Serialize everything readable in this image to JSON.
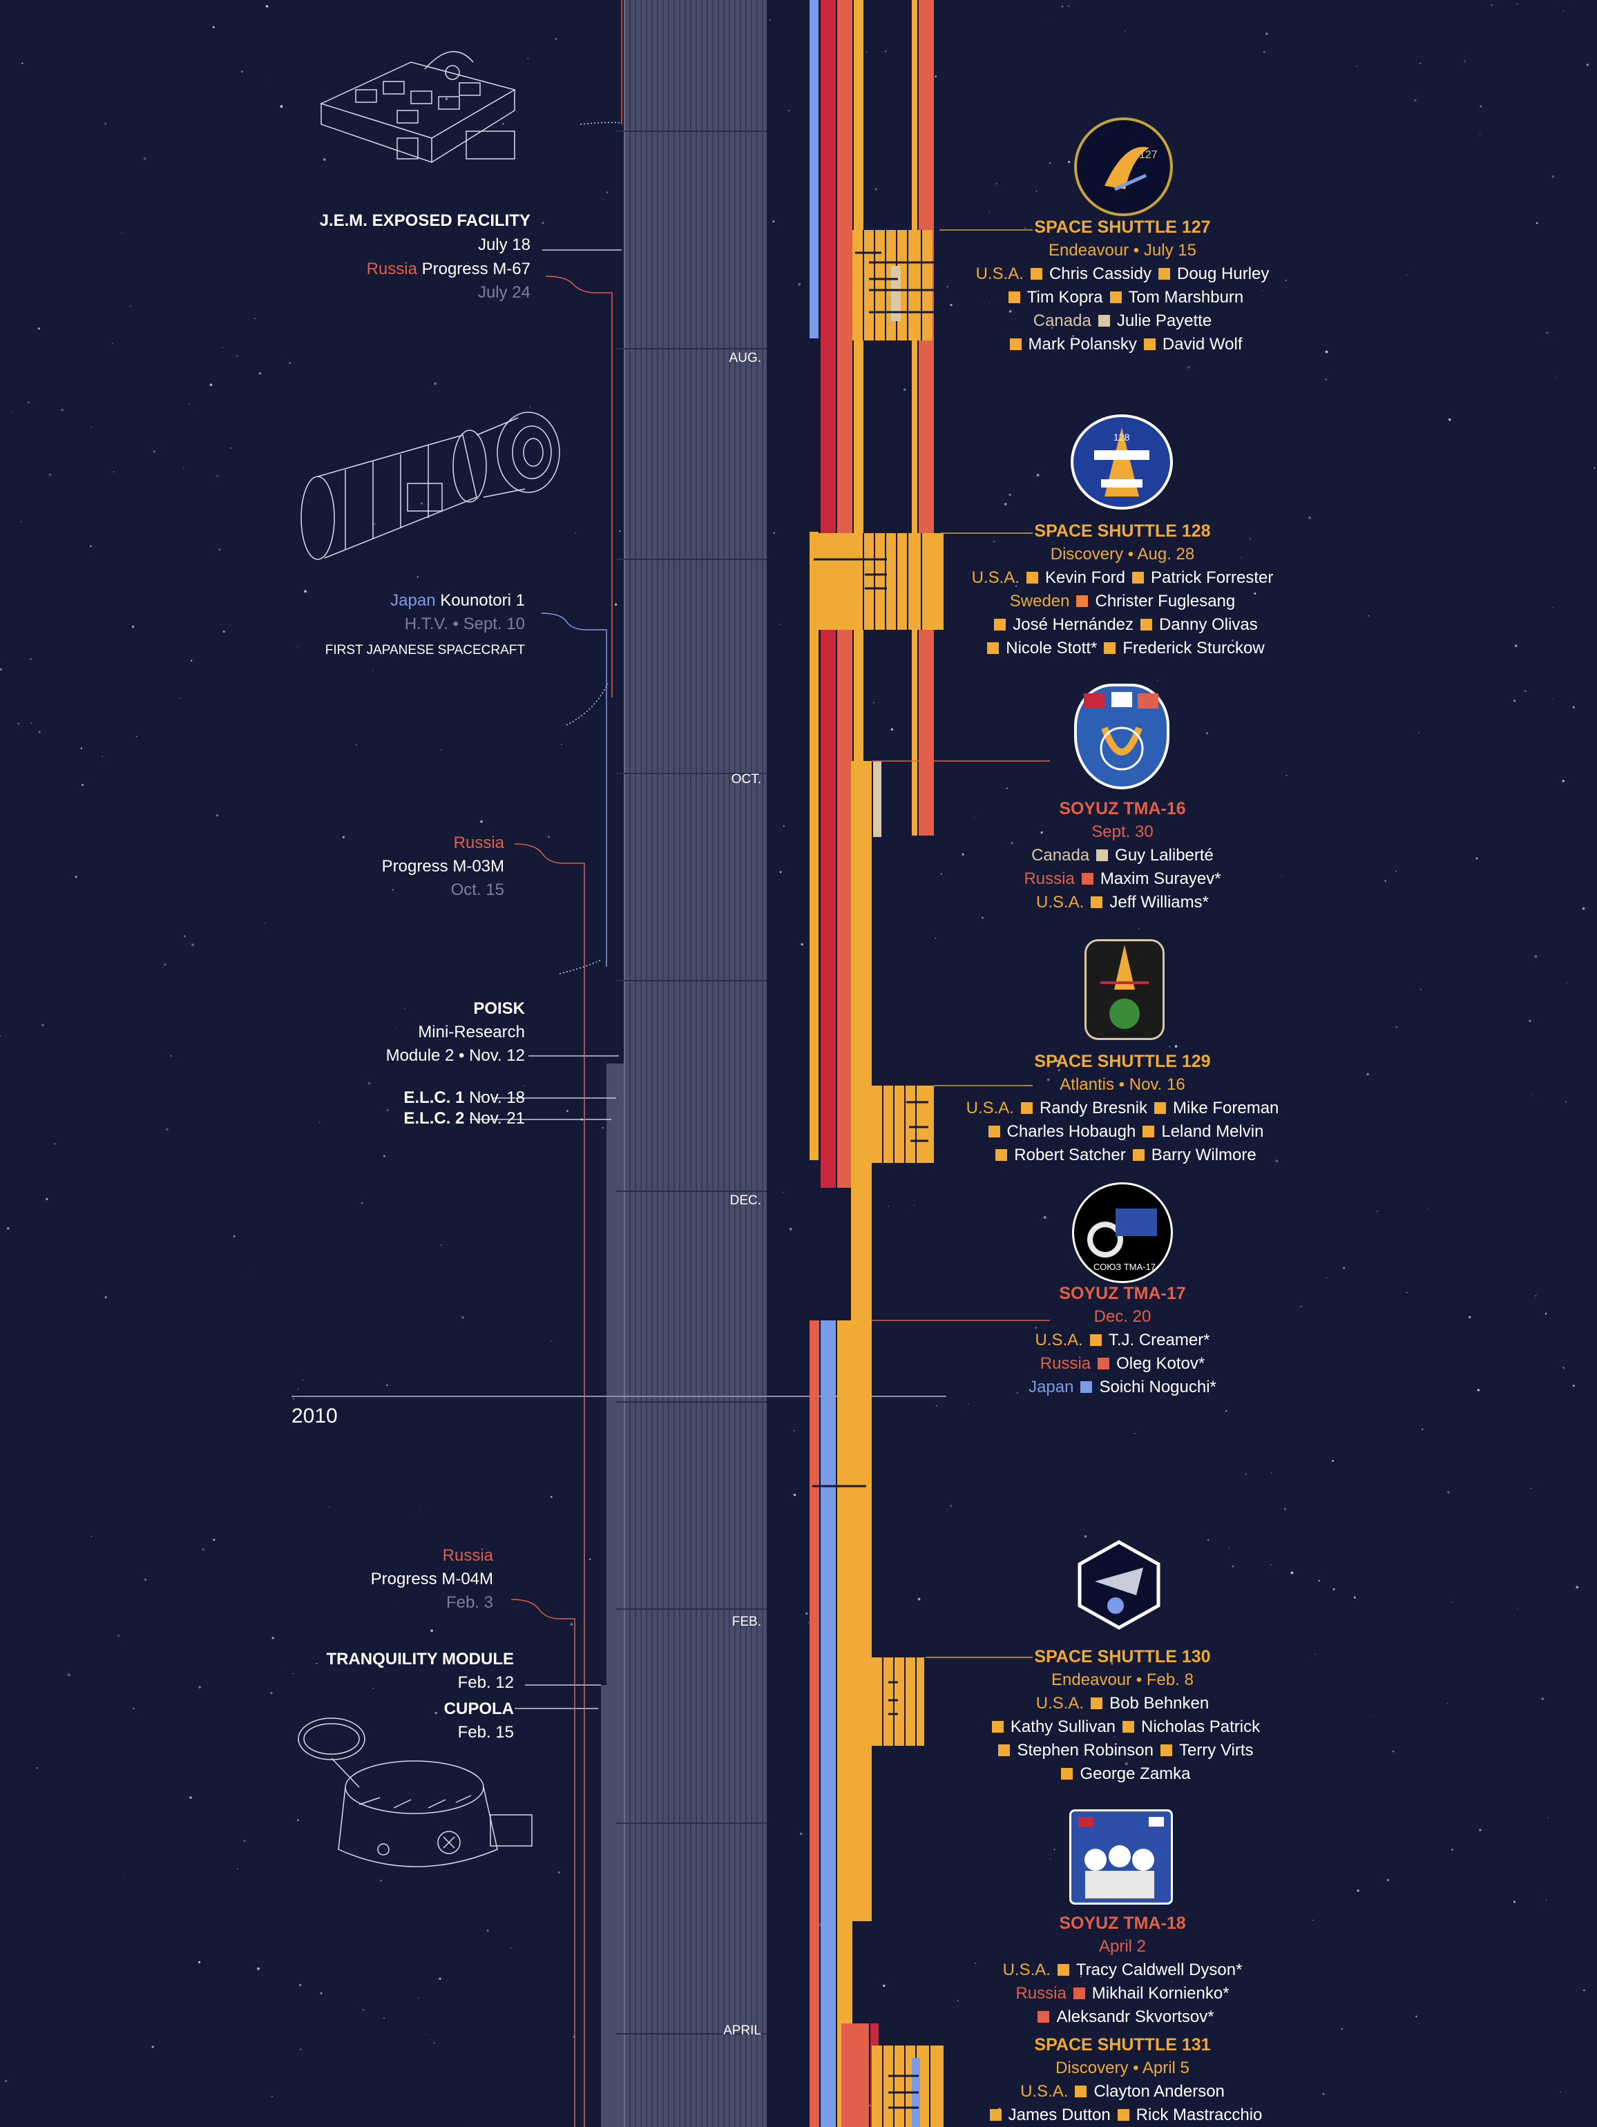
{
  "months": [
    "AUG.",
    "OCT.",
    "DEC.",
    "FEB.",
    "APRIL"
  ],
  "year": "2010",
  "left": {
    "jem": {
      "title": "J.E.M. EXPOSED FACILITY",
      "date": "July 18"
    },
    "progress_m67": {
      "country": "Russia",
      "name": "Progress M-67",
      "date": "July 24"
    },
    "htv": {
      "country": "Japan",
      "name": "Kounotori 1",
      "sub": "H.T.V.",
      "date": "Sept. 10",
      "note": "FIRST JAPANESE SPACECRAFT"
    },
    "progress_m03m": {
      "country": "Russia",
      "name": "Progress M-03M",
      "date": "Oct. 15"
    },
    "poisk": {
      "title": "POISK",
      "line2": "Mini-Research",
      "line3": "Module 2",
      "date": "Nov. 12"
    },
    "elc1": {
      "title": "E.L.C. 1",
      "date": "Nov. 18"
    },
    "elc2": {
      "title": "E.L.C. 2",
      "date": "Nov. 21"
    },
    "progress_m04m": {
      "country": "Russia",
      "name": "Progress M-04M",
      "date": "Feb. 3"
    },
    "tranquility": {
      "title": "TRANQUILITY MODULE",
      "date": "Feb. 12"
    },
    "cupola": {
      "title": "CUPOLA",
      "date": "Feb. 15"
    }
  },
  "missions": {
    "sts127": {
      "title": "SPACE SHUTTLE 127",
      "vehicle": "Endeavour",
      "date": "July 15",
      "usa": "U.S.A.",
      "c1": "Chris Cassidy",
      "c2": "Doug Hurley",
      "c3": "Tim Kopra",
      "c4": "Tom Marshburn",
      "canada": "Canada",
      "c5": "Julie Payette",
      "c6": "Mark Polansky",
      "c7": "David Wolf"
    },
    "sts128": {
      "title": "SPACE SHUTTLE 128",
      "vehicle": "Discovery",
      "date": "Aug. 28",
      "usa": "U.S.A.",
      "c1": "Kevin Ford",
      "c2": "Patrick Forrester",
      "sweden": "Sweden",
      "c3": "Christer Fuglesang",
      "c4": "José Hernández",
      "c5": "Danny Olivas",
      "c6": "Nicole Stott*",
      "c7": "Frederick Sturckow"
    },
    "tma16": {
      "title": "SOYUZ TMA-16",
      "date": "Sept. 30",
      "canada": "Canada",
      "c1": "Guy Laliberté",
      "russia": "Russia",
      "c2": "Maxim Surayev*",
      "usa": "U.S.A.",
      "c3": "Jeff Williams*"
    },
    "sts129": {
      "title": "SPACE SHUTTLE 129",
      "vehicle": "Atlantis",
      "date": "Nov. 16",
      "usa": "U.S.A.",
      "c1": "Randy Bresnik",
      "c2": "Mike Foreman",
      "c3": "Charles Hobaugh",
      "c4": "Leland Melvin",
      "c5": "Robert Satcher",
      "c6": "Barry Wilmore"
    },
    "tma17": {
      "title": "SOYUZ TMA-17",
      "date": "Dec. 20",
      "usa": "U.S.A.",
      "c1": "T.J. Creamer*",
      "russia": "Russia",
      "c2": "Oleg Kotov*",
      "japan": "Japan",
      "c3": "Soichi Noguchi*",
      "patch_text": "СОЮЗ ТМА-17"
    },
    "sts130": {
      "title": "SPACE SHUTTLE 130",
      "vehicle": "Endeavour",
      "date": "Feb. 8",
      "usa": "U.S.A.",
      "c1": "Bob Behnken",
      "c2": "Kathy Sullivan",
      "c3": "Nicholas Patrick",
      "c4": "Stephen Robinson",
      "c5": "Terry Virts",
      "c6": "George Zamka"
    },
    "tma18": {
      "title": "SOYUZ TMA-18",
      "date": "April 2",
      "usa": "U.S.A.",
      "c1": "Tracy Caldwell Dyson*",
      "russia": "Russia",
      "c2": "Mikhail Kornienko*",
      "c3": "Aleksandr Skvortsov*"
    },
    "sts131": {
      "title": "SPACE SHUTTLE 131",
      "vehicle": "Discovery",
      "date": "April 5",
      "usa": "U.S.A.",
      "c1": "Clayton Anderson",
      "c2": "James Dutton",
      "c3": "Rick Mastracchio"
    }
  },
  "colors": {
    "background": "#141935",
    "usa": "#f0aa36",
    "russia": "#e2604a",
    "japan": "#7c9be6",
    "canada": "#d9c9a8",
    "russia_bar": "#c8283b",
    "station": "#4b4e6b"
  }
}
